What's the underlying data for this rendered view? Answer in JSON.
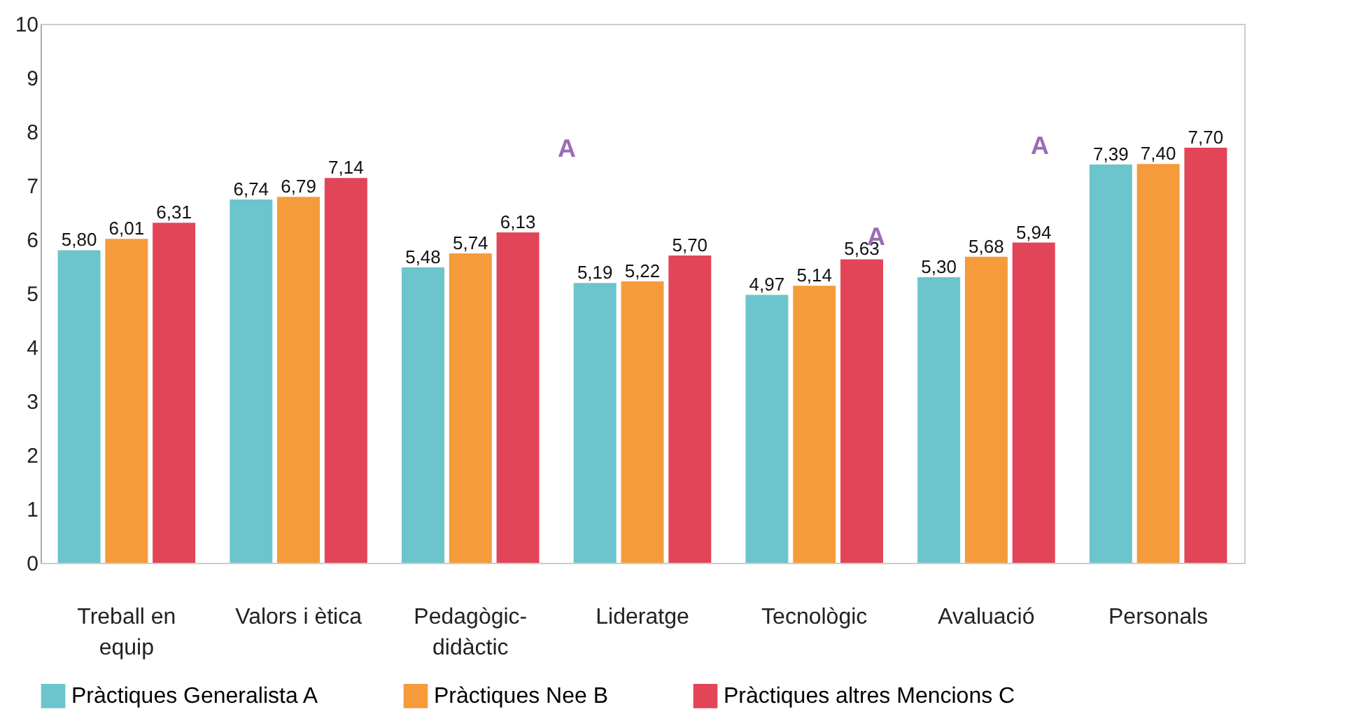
{
  "chart_data": {
    "type": "bar",
    "categories": [
      "Treball en\nequip",
      "Valors i ètica",
      "Pedagògic-\ndidàctic",
      "Lideratge",
      "Tecnològic",
      "Avaluació",
      "Personals"
    ],
    "series": [
      {
        "name": "Pràctiques Generalista A",
        "color": "#6cc5cc",
        "values": [
          5.8,
          6.74,
          5.48,
          5.19,
          4.97,
          5.3,
          7.39
        ],
        "value_labels": [
          "5,80",
          "6,74",
          "5,48",
          "5,19",
          "4,97",
          "5,30",
          "7,39"
        ]
      },
      {
        "name": "Pràctiques Nee B",
        "color": "#f59b3b",
        "values": [
          6.01,
          6.79,
          5.74,
          5.22,
          5.14,
          5.68,
          7.4
        ],
        "value_labels": [
          "6,01",
          "6,79",
          "5,74",
          "5,22",
          "5,14",
          "5,68",
          "7,40"
        ]
      },
      {
        "name": "Pràctiques altres Mencions C",
        "color": "#e34558",
        "values": [
          6.31,
          7.14,
          6.13,
          5.7,
          5.63,
          5.94,
          7.7
        ],
        "value_labels": [
          "6,31",
          "7,14",
          "6,13",
          "5,70",
          "5,63",
          "5,94",
          "7,70"
        ]
      }
    ],
    "ylim": [
      0,
      10
    ],
    "yticks": [
      0,
      1,
      2,
      3,
      4,
      5,
      6,
      7,
      8,
      9,
      10
    ],
    "annotations": [
      "A",
      "A",
      "A"
    ],
    "grid": false,
    "legend": "bottom"
  }
}
